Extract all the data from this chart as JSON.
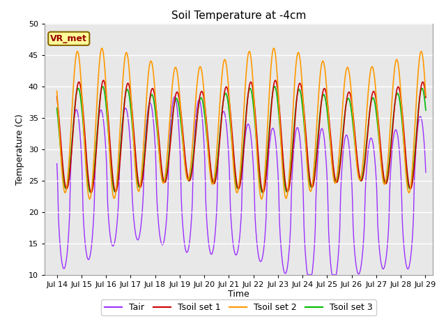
{
  "title": "Soil Temperature at -4cm",
  "ylabel": "Temperature (C)",
  "xlabel": "Time",
  "xlim_days": [
    13.5,
    29.3
  ],
  "ylim": [
    10,
    50
  ],
  "yticks": [
    10,
    15,
    20,
    25,
    30,
    35,
    40,
    45,
    50
  ],
  "xtick_labels": [
    "Jul 14",
    "Jul 15",
    "Jul 16",
    "Jul 17",
    "Jul 18",
    "Jul 19",
    "Jul 20",
    "Jul 21",
    "Jul 22",
    "Jul 23",
    "Jul 24",
    "Jul 25",
    "Jul 26",
    "Jul 27",
    "Jul 28",
    "Jul 29"
  ],
  "xtick_positions": [
    14,
    15,
    16,
    17,
    18,
    19,
    20,
    21,
    22,
    23,
    24,
    25,
    26,
    27,
    28,
    29
  ],
  "colors": {
    "Tair": "#9B30FF",
    "Tsoil1": "#CC0000",
    "Tsoil2": "#FF9900",
    "Tsoil3": "#00BB00"
  },
  "background_plot": "#e8e8e8",
  "annotation_label": "VR_met",
  "annotation_bg": "#ffff99",
  "annotation_border": "#886600",
  "annotation_text_color": "#990000",
  "figsize": [
    6.4,
    4.8
  ],
  "dpi": 100
}
